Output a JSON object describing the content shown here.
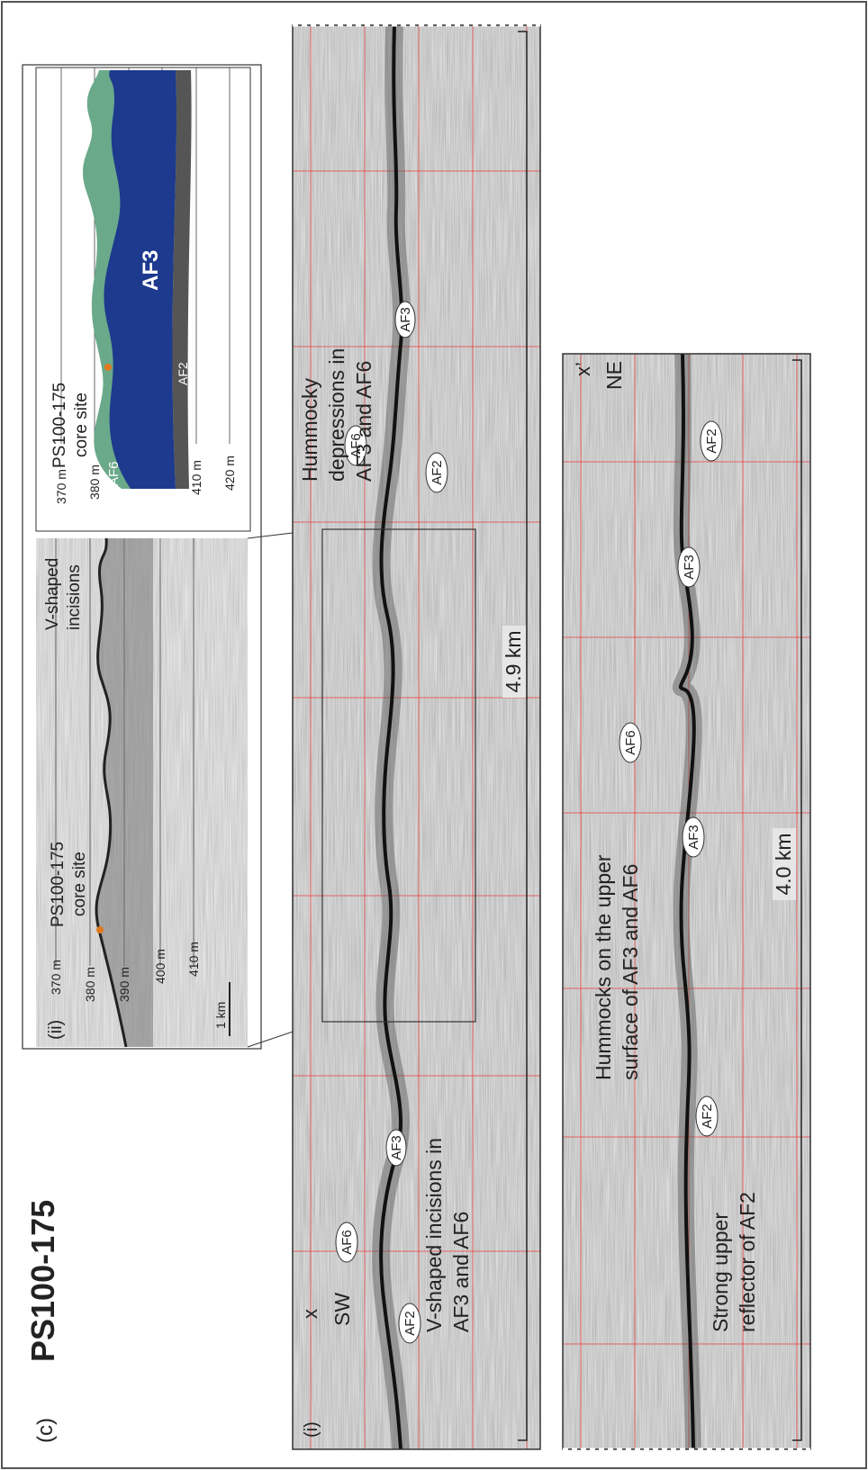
{
  "panel_label": "(c)",
  "title": "PS100-175",
  "inset_profile": {
    "label": "(ii)",
    "depth_labels": [
      "370 m",
      "380 m",
      "390 m",
      "400 m",
      "410 m"
    ],
    "scale_bar": "1 km",
    "annotations": [
      [
        "PS100-175",
        "core site"
      ],
      [
        "V-shaped",
        "incisions"
      ]
    ]
  },
  "inset_model": {
    "depth_labels": [
      "370 m",
      "380 m",
      "410 m",
      "420 m"
    ],
    "units": [
      "AF6",
      "AF3",
      "AF2"
    ],
    "annotation": [
      "PS100-175",
      "core site"
    ]
  },
  "profile_upper": {
    "label": "(i)",
    "start_marker": "x",
    "start_direction": "SW",
    "scale": "4.9 km",
    "unit_labels": [
      "AF2",
      "AF6",
      "AF3",
      "AF6",
      "AF2",
      "AF3"
    ],
    "annotations": [
      [
        "V-shaped incisions in",
        "AF3 and AF6"
      ],
      [
        "Hummocky",
        "depressions in",
        "AF3 and AF6"
      ]
    ]
  },
  "profile_lower": {
    "end_marker": "x’",
    "end_direction": "NE",
    "scale": "4.0 km",
    "unit_labels": [
      "AF2",
      "AF3",
      "AF6",
      "AF3",
      "AF2"
    ],
    "annotations": [
      [
        "Hummocks on the upper",
        "surface of AF3 and AF6"
      ],
      [
        "Strong upper",
        "reflector of AF2"
      ]
    ]
  }
}
